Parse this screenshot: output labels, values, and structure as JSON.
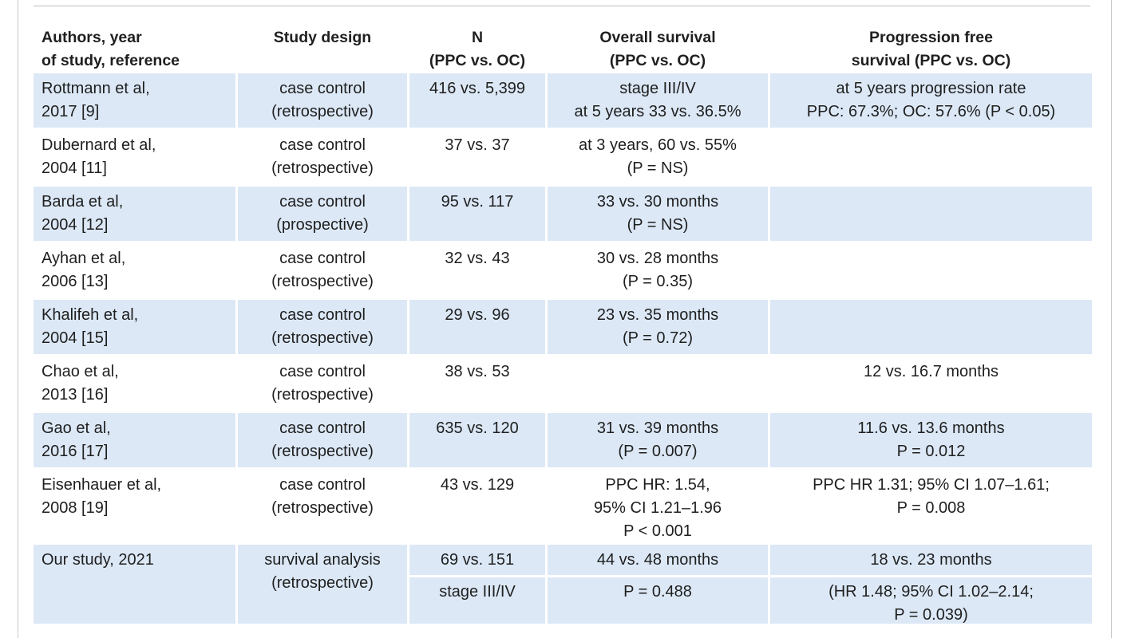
{
  "headers": {
    "authors": [
      "Authors, year",
      "of study, reference"
    ],
    "design": [
      "Study design"
    ],
    "n": [
      "N",
      "(PPC vs. OC)"
    ],
    "os": [
      "Overall survival",
      "(PPC vs. OC)"
    ],
    "pfs": [
      "Progression free",
      "survival (PPC vs. OC)"
    ]
  },
  "rows": [
    {
      "authors": [
        "Rottmann et al,",
        "2017 [9]"
      ],
      "design": [
        "case control",
        "(retrospective)"
      ],
      "n": [
        "416 vs. 5,399"
      ],
      "os": [
        "stage III/IV",
        "at 5 years 33 vs. 36.5%"
      ],
      "pfs": [
        "at 5 years progression rate",
        "PPC: 67.3%; OC: 57.6% (P < 0.05)"
      ]
    },
    {
      "authors": [
        "Dubernard et al,",
        "2004 [11]"
      ],
      "design": [
        "case control",
        "(retrospective)"
      ],
      "n": [
        "37 vs. 37"
      ],
      "os": [
        "at 3 years, 60 vs. 55%",
        "(P = NS)"
      ],
      "pfs": []
    },
    {
      "authors": [
        "Barda et al,",
        "2004 [12]"
      ],
      "design": [
        "case control",
        "(prospective)"
      ],
      "n": [
        "95 vs. 117"
      ],
      "os": [
        "33 vs. 30 months",
        "(P = NS)"
      ],
      "pfs": []
    },
    {
      "authors": [
        "Ayhan et al,",
        "2006 [13]"
      ],
      "design": [
        "case control",
        "(retrospective)"
      ],
      "n": [
        "32 vs. 43"
      ],
      "os": [
        "30 vs. 28 months",
        "(P = 0.35)"
      ],
      "pfs": []
    },
    {
      "authors": [
        "Khalifeh et al,",
        "2004 [15]"
      ],
      "design": [
        "case control",
        "(retrospective)"
      ],
      "n": [
        "29 vs. 96"
      ],
      "os": [
        "23 vs. 35 months",
        "(P = 0.72)"
      ],
      "pfs": []
    },
    {
      "authors": [
        "Chao et al,",
        "2013 [16]"
      ],
      "design": [
        "case control",
        "(retrospective)"
      ],
      "n": [
        "38 vs. 53"
      ],
      "os": [],
      "pfs": [
        "12 vs. 16.7 months"
      ]
    },
    {
      "authors": [
        "Gao et al,",
        "2016 [17]"
      ],
      "design": [
        "case control",
        "(retrospective)"
      ],
      "n": [
        "635 vs. 120"
      ],
      "os": [
        "31 vs. 39 months",
        "(P = 0.007)"
      ],
      "pfs": [
        "11.6 vs. 13.6 months",
        "P = 0.012"
      ]
    },
    {
      "authors": [
        "Eisenhauer et al,",
        "2008 [19]"
      ],
      "design": [
        "case control",
        "(retrospective)"
      ],
      "n": [
        "43 vs. 129"
      ],
      "os": [
        "PPC HR: 1.54,",
        "95% CI 1.21–1.96",
        "P < 0.001"
      ],
      "pfs": [
        "PPC HR 1.31; 95% CI 1.07–1.61;",
        "P = 0.008"
      ]
    }
  ],
  "our": {
    "authors": [
      "Our study, 2021"
    ],
    "design": [
      "survival analysis",
      "(retrospective)"
    ],
    "n_top": "69 vs. 151",
    "n_bottom": "stage III/IV",
    "os_top": "44 vs. 48 months",
    "os_bottom": "P = 0.488",
    "pfs_top": "18 vs. 23 months",
    "pfs_bottom": [
      "(HR 1.48; 95% CI 1.02–2.14;",
      "P = 0.039)"
    ]
  }
}
